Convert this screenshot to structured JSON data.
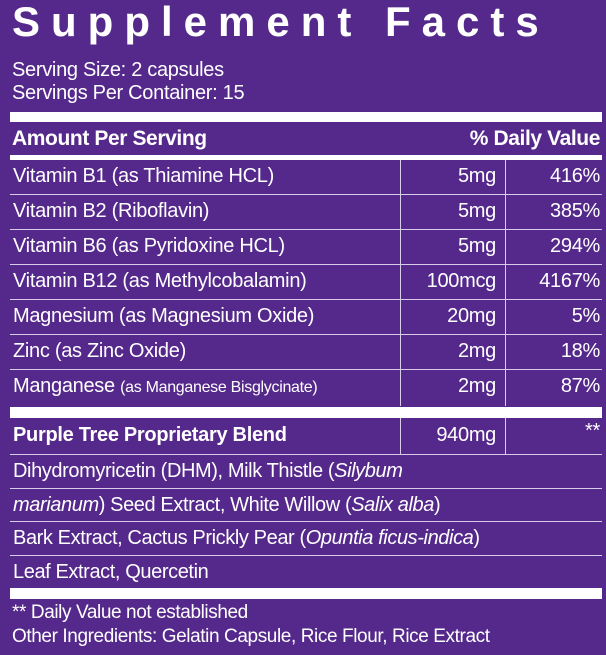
{
  "title": "Supplement Facts",
  "serving_size": "Serving Size: 2 capsules",
  "servings_per_container": "Servings Per Container: 15",
  "header": {
    "amount": "Amount Per Serving",
    "dv": "% Daily Value"
  },
  "nutrients": [
    {
      "name": "Vitamin B1 (as Thiamine HCL)",
      "sub": "",
      "amount": "5mg",
      "dv": "416%"
    },
    {
      "name": "Vitamin B2 (Riboflavin)",
      "sub": "",
      "amount": "5mg",
      "dv": "385%"
    },
    {
      "name": "Vitamin B6 (as Pyridoxine HCL)",
      "sub": "",
      "amount": "5mg",
      "dv": "294%"
    },
    {
      "name": "Vitamin B12 (as Methylcobalamin)",
      "sub": "",
      "amount": "100mcg",
      "dv": "4167%"
    },
    {
      "name": "Magnesium (as Magnesium Oxide)",
      "sub": "",
      "amount": "20mg",
      "dv": "5%"
    },
    {
      "name": "Zinc (as Zinc Oxide)",
      "sub": "",
      "amount": "2mg",
      "dv": "18%"
    },
    {
      "name": "Manganese",
      "sub": "(as Manganese Bisglycinate)",
      "amount": "2mg",
      "dv": "87%"
    }
  ],
  "blend": {
    "name": "Purple Tree Proprietary Blend",
    "amount": "940mg",
    "dv": "**"
  },
  "blend_ingredients": [
    [
      "Dihydromyricetin (DHM), Milk Thistle (",
      "Silybum",
      ""
    ],
    [
      "",
      "marianum",
      ") Seed Extract, White Willow (",
      "Salix alba",
      ")"
    ],
    [
      "Bark Extract, Cactus Prickly Pear (",
      "Opuntia ficus-indica",
      ")"
    ],
    [
      "Leaf Extract, Quercetin"
    ]
  ],
  "footnote": "** Daily Value not established",
  "other_ingredients": "Other Ingredients: Gelatin Capsule, Rice Flour, Rice Extract",
  "colors": {
    "background": "#55298b",
    "text": "#ffffff"
  }
}
